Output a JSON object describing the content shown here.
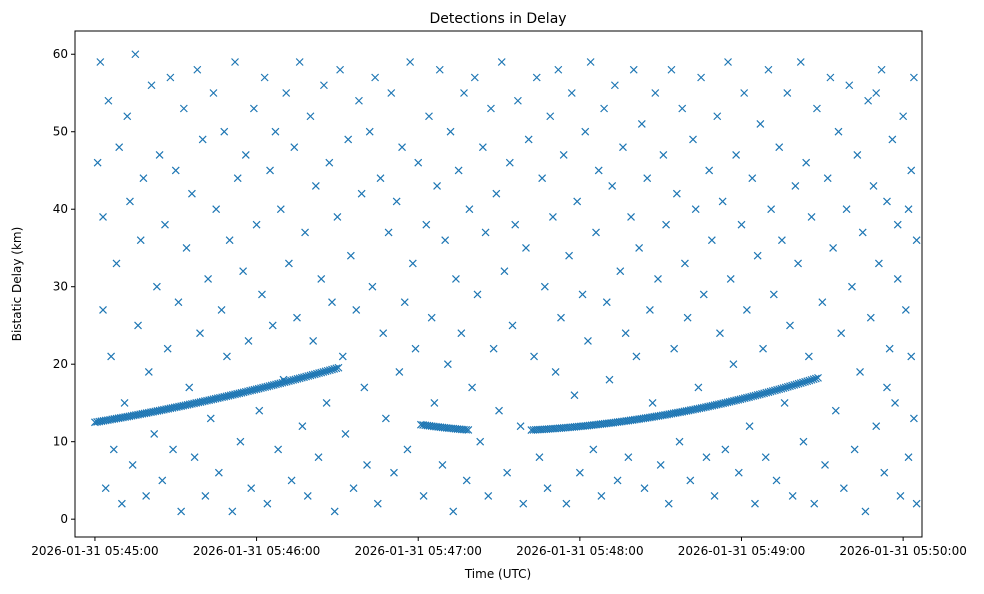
{
  "chart_data": {
    "type": "scatter",
    "title": "Detections in Delay",
    "xlabel": "Time (UTC)",
    "ylabel": "Bistatic Delay (km)",
    "x_units": "seconds after 2026-01-31 05:45:00",
    "xlim": [
      -7.4,
      307
    ],
    "ylim": [
      -2.3,
      63
    ],
    "xticks": [
      0,
      60,
      120,
      180,
      240,
      300
    ],
    "xtick_labels": [
      "2026-01-31 05:45:00",
      "2026-01-31 05:46:00",
      "2026-01-31 05:47:00",
      "2026-01-31 05:48:00",
      "2026-01-31 05:49:00",
      "2026-01-31 05:50:00"
    ],
    "yticks": [
      0,
      10,
      20,
      30,
      40,
      50,
      60
    ],
    "ytick_labels": [
      "0",
      "10",
      "20",
      "30",
      "40",
      "50",
      "60"
    ],
    "marker": "x",
    "color": "#1f77b4",
    "grid": false,
    "track_segments": [
      {
        "t_start": 0,
        "t_end": 91,
        "delay_start": 12.5,
        "delay_mid": 15.6,
        "delay_end": 19.6,
        "step": 0.8
      },
      {
        "t_start": 121,
        "t_end": 139,
        "delay_start": 12.2,
        "delay_mid": 11.8,
        "delay_end": 11.5,
        "step": 0.8
      },
      {
        "t_start": 162,
        "t_end": 269,
        "delay_start": 11.5,
        "delay_mid": 13.7,
        "delay_end": 18.3,
        "step": 0.8
      }
    ],
    "clutter_points": [
      [
        1,
        46
      ],
      [
        2,
        59
      ],
      [
        3,
        27
      ],
      [
        3,
        39
      ],
      [
        4,
        4
      ],
      [
        5,
        54
      ],
      [
        6,
        21
      ],
      [
        7,
        9
      ],
      [
        8,
        33
      ],
      [
        9,
        48
      ],
      [
        10,
        2
      ],
      [
        11,
        15
      ],
      [
        12,
        52
      ],
      [
        13,
        41
      ],
      [
        14,
        7
      ],
      [
        15,
        60
      ],
      [
        16,
        25
      ],
      [
        17,
        36
      ],
      [
        18,
        44
      ],
      [
        19,
        3
      ],
      [
        20,
        19
      ],
      [
        21,
        56
      ],
      [
        22,
        11
      ],
      [
        23,
        30
      ],
      [
        24,
        47
      ],
      [
        25,
        5
      ],
      [
        26,
        38
      ],
      [
        27,
        22
      ],
      [
        28,
        57
      ],
      [
        29,
        9
      ],
      [
        30,
        45
      ],
      [
        31,
        28
      ],
      [
        32,
        1
      ],
      [
        33,
        53
      ],
      [
        34,
        35
      ],
      [
        35,
        17
      ],
      [
        36,
        42
      ],
      [
        37,
        8
      ],
      [
        38,
        58
      ],
      [
        39,
        24
      ],
      [
        40,
        49
      ],
      [
        41,
        3
      ],
      [
        42,
        31
      ],
      [
        43,
        13
      ],
      [
        44,
        55
      ],
      [
        45,
        40
      ],
      [
        46,
        6
      ],
      [
        47,
        27
      ],
      [
        48,
        50
      ],
      [
        49,
        21
      ],
      [
        50,
        36
      ],
      [
        51,
        1
      ],
      [
        52,
        59
      ],
      [
        53,
        44
      ],
      [
        54,
        10
      ],
      [
        55,
        32
      ],
      [
        56,
        47
      ],
      [
        57,
        23
      ],
      [
        58,
        4
      ],
      [
        59,
        53
      ],
      [
        60,
        38
      ],
      [
        61,
        14
      ],
      [
        62,
        29
      ],
      [
        63,
        57
      ],
      [
        64,
        2
      ],
      [
        65,
        45
      ],
      [
        66,
        25
      ],
      [
        67,
        50
      ],
      [
        68,
        9
      ],
      [
        69,
        40
      ],
      [
        70,
        18
      ],
      [
        71,
        55
      ],
      [
        72,
        33
      ],
      [
        73,
        5
      ],
      [
        74,
        48
      ],
      [
        75,
        26
      ],
      [
        76,
        59
      ],
      [
        77,
        12
      ],
      [
        78,
        37
      ],
      [
        79,
        3
      ],
      [
        80,
        52
      ],
      [
        81,
        23
      ],
      [
        82,
        43
      ],
      [
        83,
        8
      ],
      [
        84,
        31
      ],
      [
        85,
        56
      ],
      [
        86,
        15
      ],
      [
        87,
        46
      ],
      [
        88,
        28
      ],
      [
        89,
        1
      ],
      [
        90,
        39
      ],
      [
        91,
        58
      ],
      [
        92,
        21
      ],
      [
        93,
        11
      ],
      [
        94,
        49
      ],
      [
        95,
        34
      ],
      [
        96,
        4
      ],
      [
        97,
        27
      ],
      [
        98,
        54
      ],
      [
        99,
        42
      ],
      [
        100,
        17
      ],
      [
        101,
        7
      ],
      [
        102,
        50
      ],
      [
        103,
        30
      ],
      [
        104,
        57
      ],
      [
        105,
        2
      ],
      [
        106,
        44
      ],
      [
        107,
        24
      ],
      [
        108,
        13
      ],
      [
        109,
        37
      ],
      [
        110,
        55
      ],
      [
        111,
        6
      ],
      [
        112,
        41
      ],
      [
        113,
        19
      ],
      [
        114,
        48
      ],
      [
        115,
        28
      ],
      [
        116,
        9
      ],
      [
        117,
        59
      ],
      [
        118,
        33
      ],
      [
        119,
        22
      ],
      [
        120,
        46
      ],
      [
        122,
        3
      ],
      [
        123,
        38
      ],
      [
        124,
        52
      ],
      [
        125,
        26
      ],
      [
        126,
        15
      ],
      [
        127,
        43
      ],
      [
        128,
        58
      ],
      [
        129,
        7
      ],
      [
        130,
        36
      ],
      [
        131,
        20
      ],
      [
        132,
        50
      ],
      [
        133,
        1
      ],
      [
        134,
        31
      ],
      [
        135,
        45
      ],
      [
        136,
        24
      ],
      [
        137,
        55
      ],
      [
        138,
        5
      ],
      [
        139,
        40
      ],
      [
        140,
        17
      ],
      [
        141,
        57
      ],
      [
        142,
        29
      ],
      [
        143,
        10
      ],
      [
        144,
        48
      ],
      [
        145,
        37
      ],
      [
        146,
        3
      ],
      [
        147,
        53
      ],
      [
        148,
        22
      ],
      [
        149,
        42
      ],
      [
        150,
        14
      ],
      [
        151,
        59
      ],
      [
        152,
        32
      ],
      [
        153,
        6
      ],
      [
        154,
        46
      ],
      [
        155,
        25
      ],
      [
        156,
        38
      ],
      [
        157,
        54
      ],
      [
        158,
        12
      ],
      [
        159,
        2
      ],
      [
        160,
        35
      ],
      [
        161,
        49
      ],
      [
        163,
        21
      ],
      [
        164,
        57
      ],
      [
        165,
        8
      ],
      [
        166,
        44
      ],
      [
        167,
        30
      ],
      [
        168,
        4
      ],
      [
        169,
        52
      ],
      [
        170,
        39
      ],
      [
        171,
        19
      ],
      [
        172,
        58
      ],
      [
        173,
        26
      ],
      [
        174,
        47
      ],
      [
        175,
        2
      ],
      [
        176,
        34
      ],
      [
        177,
        55
      ],
      [
        178,
        16
      ],
      [
        179,
        41
      ],
      [
        180,
        6
      ],
      [
        181,
        29
      ],
      [
        182,
        50
      ],
      [
        183,
        23
      ],
      [
        184,
        59
      ],
      [
        185,
        9
      ],
      [
        186,
        37
      ],
      [
        187,
        45
      ],
      [
        188,
        3
      ],
      [
        189,
        53
      ],
      [
        190,
        28
      ],
      [
        191,
        18
      ],
      [
        192,
        43
      ],
      [
        193,
        56
      ],
      [
        194,
        5
      ],
      [
        195,
        32
      ],
      [
        196,
        48
      ],
      [
        197,
        24
      ],
      [
        198,
        8
      ],
      [
        199,
        39
      ],
      [
        200,
        58
      ],
      [
        201,
        21
      ],
      [
        202,
        35
      ],
      [
        203,
        51
      ],
      [
        204,
        4
      ],
      [
        205,
        44
      ],
      [
        206,
        27
      ],
      [
        207,
        15
      ],
      [
        208,
        55
      ],
      [
        209,
        31
      ],
      [
        210,
        7
      ],
      [
        211,
        47
      ],
      [
        212,
        38
      ],
      [
        213,
        2
      ],
      [
        214,
        58
      ],
      [
        215,
        22
      ],
      [
        216,
        42
      ],
      [
        217,
        10
      ],
      [
        218,
        53
      ],
      [
        219,
        33
      ],
      [
        220,
        26
      ],
      [
        221,
        5
      ],
      [
        222,
        49
      ],
      [
        223,
        40
      ],
      [
        224,
        17
      ],
      [
        225,
        57
      ],
      [
        226,
        29
      ],
      [
        227,
        8
      ],
      [
        228,
        45
      ],
      [
        229,
        36
      ],
      [
        230,
        3
      ],
      [
        231,
        52
      ],
      [
        232,
        24
      ],
      [
        233,
        41
      ],
      [
        234,
        9
      ],
      [
        235,
        59
      ],
      [
        236,
        31
      ],
      [
        237,
        20
      ],
      [
        238,
        47
      ],
      [
        239,
        6
      ],
      [
        240,
        38
      ],
      [
        241,
        55
      ],
      [
        242,
        27
      ],
      [
        243,
        12
      ],
      [
        244,
        44
      ],
      [
        245,
        2
      ],
      [
        246,
        34
      ],
      [
        247,
        51
      ],
      [
        248,
        22
      ],
      [
        249,
        8
      ],
      [
        250,
        58
      ],
      [
        251,
        40
      ],
      [
        252,
        29
      ],
      [
        253,
        5
      ],
      [
        254,
        48
      ],
      [
        255,
        36
      ],
      [
        256,
        15
      ],
      [
        257,
        55
      ],
      [
        258,
        25
      ],
      [
        259,
        3
      ],
      [
        260,
        43
      ],
      [
        261,
        33
      ],
      [
        262,
        59
      ],
      [
        263,
        10
      ],
      [
        264,
        46
      ],
      [
        265,
        21
      ],
      [
        266,
        39
      ],
      [
        267,
        2
      ],
      [
        268,
        53
      ],
      [
        270,
        28
      ],
      [
        271,
        7
      ],
      [
        272,
        44
      ],
      [
        273,
        57
      ],
      [
        274,
        35
      ],
      [
        275,
        14
      ],
      [
        276,
        50
      ],
      [
        277,
        24
      ],
      [
        278,
        4
      ],
      [
        279,
        40
      ],
      [
        280,
        56
      ],
      [
        281,
        30
      ],
      [
        282,
        9
      ],
      [
        283,
        47
      ],
      [
        284,
        19
      ],
      [
        285,
        37
      ],
      [
        286,
        1
      ],
      [
        287,
        54
      ],
      [
        288,
        26
      ],
      [
        289,
        43
      ],
      [
        290,
        12
      ],
      [
        291,
        33
      ],
      [
        292,
        58
      ],
      [
        293,
        6
      ],
      [
        294,
        41
      ],
      [
        295,
        22
      ],
      [
        296,
        49
      ],
      [
        297,
        15
      ],
      [
        298,
        38
      ],
      [
        299,
        3
      ],
      [
        300,
        52
      ],
      [
        301,
        27
      ],
      [
        302,
        8
      ],
      [
        303,
        45
      ],
      [
        303,
        21
      ],
      [
        304,
        57
      ],
      [
        304,
        13
      ],
      [
        305,
        36
      ],
      [
        305,
        2
      ],
      [
        302,
        40
      ],
      [
        298,
        31
      ],
      [
        294,
        17
      ],
      [
        290,
        55
      ]
    ]
  }
}
